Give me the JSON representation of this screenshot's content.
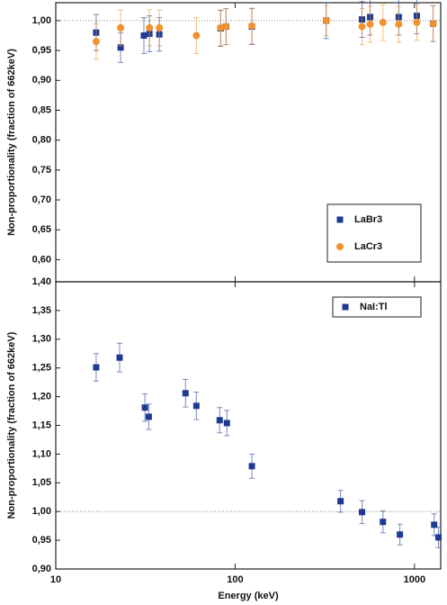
{
  "chart_data": [
    {
      "type": "scatter",
      "y_label": "Non-proportionality (fraction of 662keV)",
      "xlim": [
        10,
        1400
      ],
      "xticks": [
        10,
        100,
        1000
      ],
      "log_x": true,
      "ylim": [
        0.563,
        1.03
      ],
      "yticks": [
        {
          "value": 0.6,
          "label": "0,60"
        },
        {
          "value": 0.65,
          "label": "0,65"
        },
        {
          "value": 0.7,
          "label": "0,70"
        },
        {
          "value": 0.75,
          "label": "0,75"
        },
        {
          "value": 0.8,
          "label": "0,80"
        },
        {
          "value": 0.85,
          "label": "0,85"
        },
        {
          "value": 0.9,
          "label": "0,90"
        },
        {
          "value": 0.95,
          "label": "0,95"
        },
        {
          "value": 1.0,
          "label": "1,00"
        }
      ],
      "reference_line": 1.0,
      "legend": "lower right",
      "series": [
        {
          "name": "LaBr3",
          "color": "#1f3a93",
          "marker": "square",
          "x": [
            16.8,
            23.0,
            31.0,
            33.3,
            37.8,
            83,
            89,
            124,
            322,
            510,
            566,
            817,
            1030,
            1270
          ],
          "values": [
            0.98,
            0.955,
            0.975,
            0.978,
            0.977,
            0.987,
            0.99,
            0.99,
            1.0,
            1.002,
            1.006,
            1.006,
            1.008,
            0.995
          ],
          "errors": [
            0.03,
            0.025,
            0.03,
            0.03,
            0.028,
            0.03,
            0.03,
            0.03,
            0.03,
            0.03,
            0.03,
            0.03,
            0.03,
            0.03
          ]
        },
        {
          "name": "LaCr3",
          "color": "#f0922e",
          "marker": "circle",
          "x": [
            16.8,
            23.0,
            33.3,
            37.8,
            60.8,
            83,
            89,
            124,
            322,
            510,
            566,
            667,
            817,
            1030,
            1270
          ],
          "values": [
            0.965,
            0.988,
            0.988,
            0.988,
            0.975,
            0.988,
            0.99,
            0.991,
            1.0,
            0.99,
            0.994,
            0.997,
            0.994,
            0.997,
            0.995
          ],
          "errors": [
            0.03,
            0.03,
            0.03,
            0.03,
            0.03,
            0.03,
            0.03,
            0.03,
            0.025,
            0.03,
            0.03,
            0.03,
            0.03,
            0.03,
            0.03
          ]
        }
      ]
    },
    {
      "type": "scatter",
      "y_label": "Non-proportionality (fraction of 662keV)",
      "x_label": "Energy (keV)",
      "xlim": [
        10,
        1400
      ],
      "xticks": [
        10,
        100,
        1000
      ],
      "log_x": true,
      "ylim": [
        0.9,
        1.4
      ],
      "yticks": [
        {
          "value": 0.9,
          "label": "0,90"
        },
        {
          "value": 0.95,
          "label": "0,95"
        },
        {
          "value": 1.0,
          "label": "1,00"
        },
        {
          "value": 1.05,
          "label": "1,05"
        },
        {
          "value": 1.1,
          "label": "1,10"
        },
        {
          "value": 1.15,
          "label": "1,15"
        },
        {
          "value": 1.2,
          "label": "1,20"
        },
        {
          "value": 1.25,
          "label": "1,25"
        },
        {
          "value": 1.3,
          "label": "1,30"
        },
        {
          "value": 1.35,
          "label": "1,35"
        },
        {
          "value": 1.4,
          "label": "1,40"
        }
      ],
      "reference_line": 1.0,
      "legend": "upper right",
      "series": [
        {
          "name": "NaI:Tl",
          "color": "#1f3a93",
          "marker": "square",
          "x": [
            16.8,
            22.7,
            31.4,
            33,
            52.9,
            60.8,
            82,
            90,
            124,
            387,
            510,
            667,
            829,
            1287,
            1360
          ],
          "values": [
            1.251,
            1.268,
            1.181,
            1.165,
            1.206,
            1.184,
            1.159,
            1.154,
            1.079,
            1.018,
            0.999,
            0.982,
            0.96,
            0.977,
            0.955
          ],
          "errors": [
            0.024,
            0.025,
            0.024,
            0.022,
            0.024,
            0.024,
            0.022,
            0.022,
            0.021,
            0.019,
            0.02,
            0.019,
            0.018,
            0.019,
            0.018
          ]
        }
      ]
    }
  ]
}
